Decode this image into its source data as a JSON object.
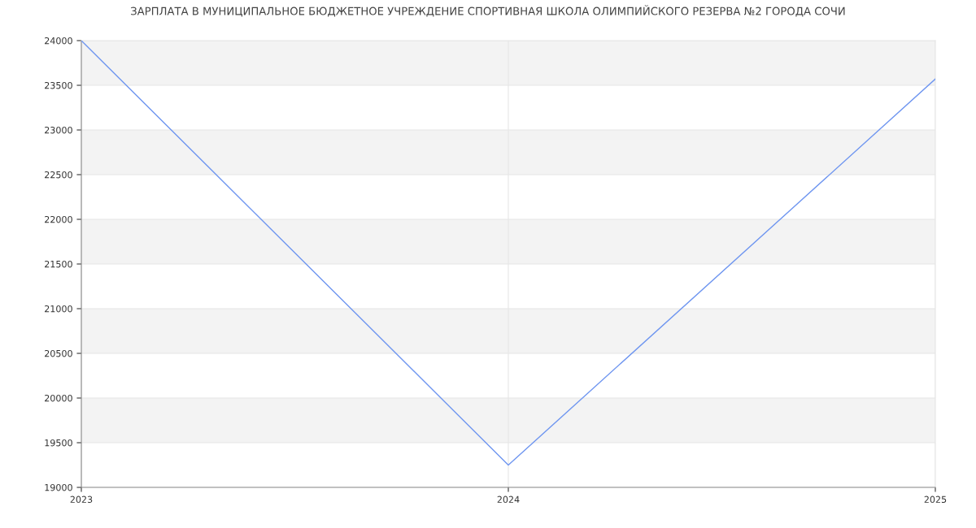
{
  "chart_data": {
    "type": "line",
    "title": "ЗАРПЛАТА В МУНИЦИПАЛЬНОЕ БЮДЖЕТНОЕ УЧРЕЖДЕНИЕ СПОРТИВНАЯ ШКОЛА ОЛИМПИЙСКОГО РЕЗЕРВА №2 ГОРОДА СОЧИ",
    "x": [
      2023,
      2024,
      2025
    ],
    "series": [
      {
        "color": "#6f96f0",
        "values": [
          24000,
          19250,
          23570
        ]
      }
    ],
    "xlim": [
      2023,
      2025
    ],
    "xticks": [
      2023,
      2024,
      2025
    ],
    "ylim": [
      19000,
      24000
    ],
    "yticks": [
      19000,
      19500,
      20000,
      20500,
      21000,
      21500,
      22000,
      22500,
      23000,
      23500,
      24000
    ],
    "bands": [
      {
        "axis": "y",
        "from": 19500,
        "to": 20000,
        "color": "#f3f3f3"
      },
      {
        "axis": "y",
        "from": 20500,
        "to": 21000,
        "color": "#f3f3f3"
      },
      {
        "axis": "y",
        "from": 21500,
        "to": 22000,
        "color": "#f3f3f3"
      },
      {
        "axis": "y",
        "from": 22500,
        "to": 23000,
        "color": "#f3f3f3"
      },
      {
        "axis": "y",
        "from": 23500,
        "to": 24000,
        "color": "#f3f3f3"
      }
    ],
    "grid": true,
    "marker": "none",
    "line_style": "solid"
  }
}
